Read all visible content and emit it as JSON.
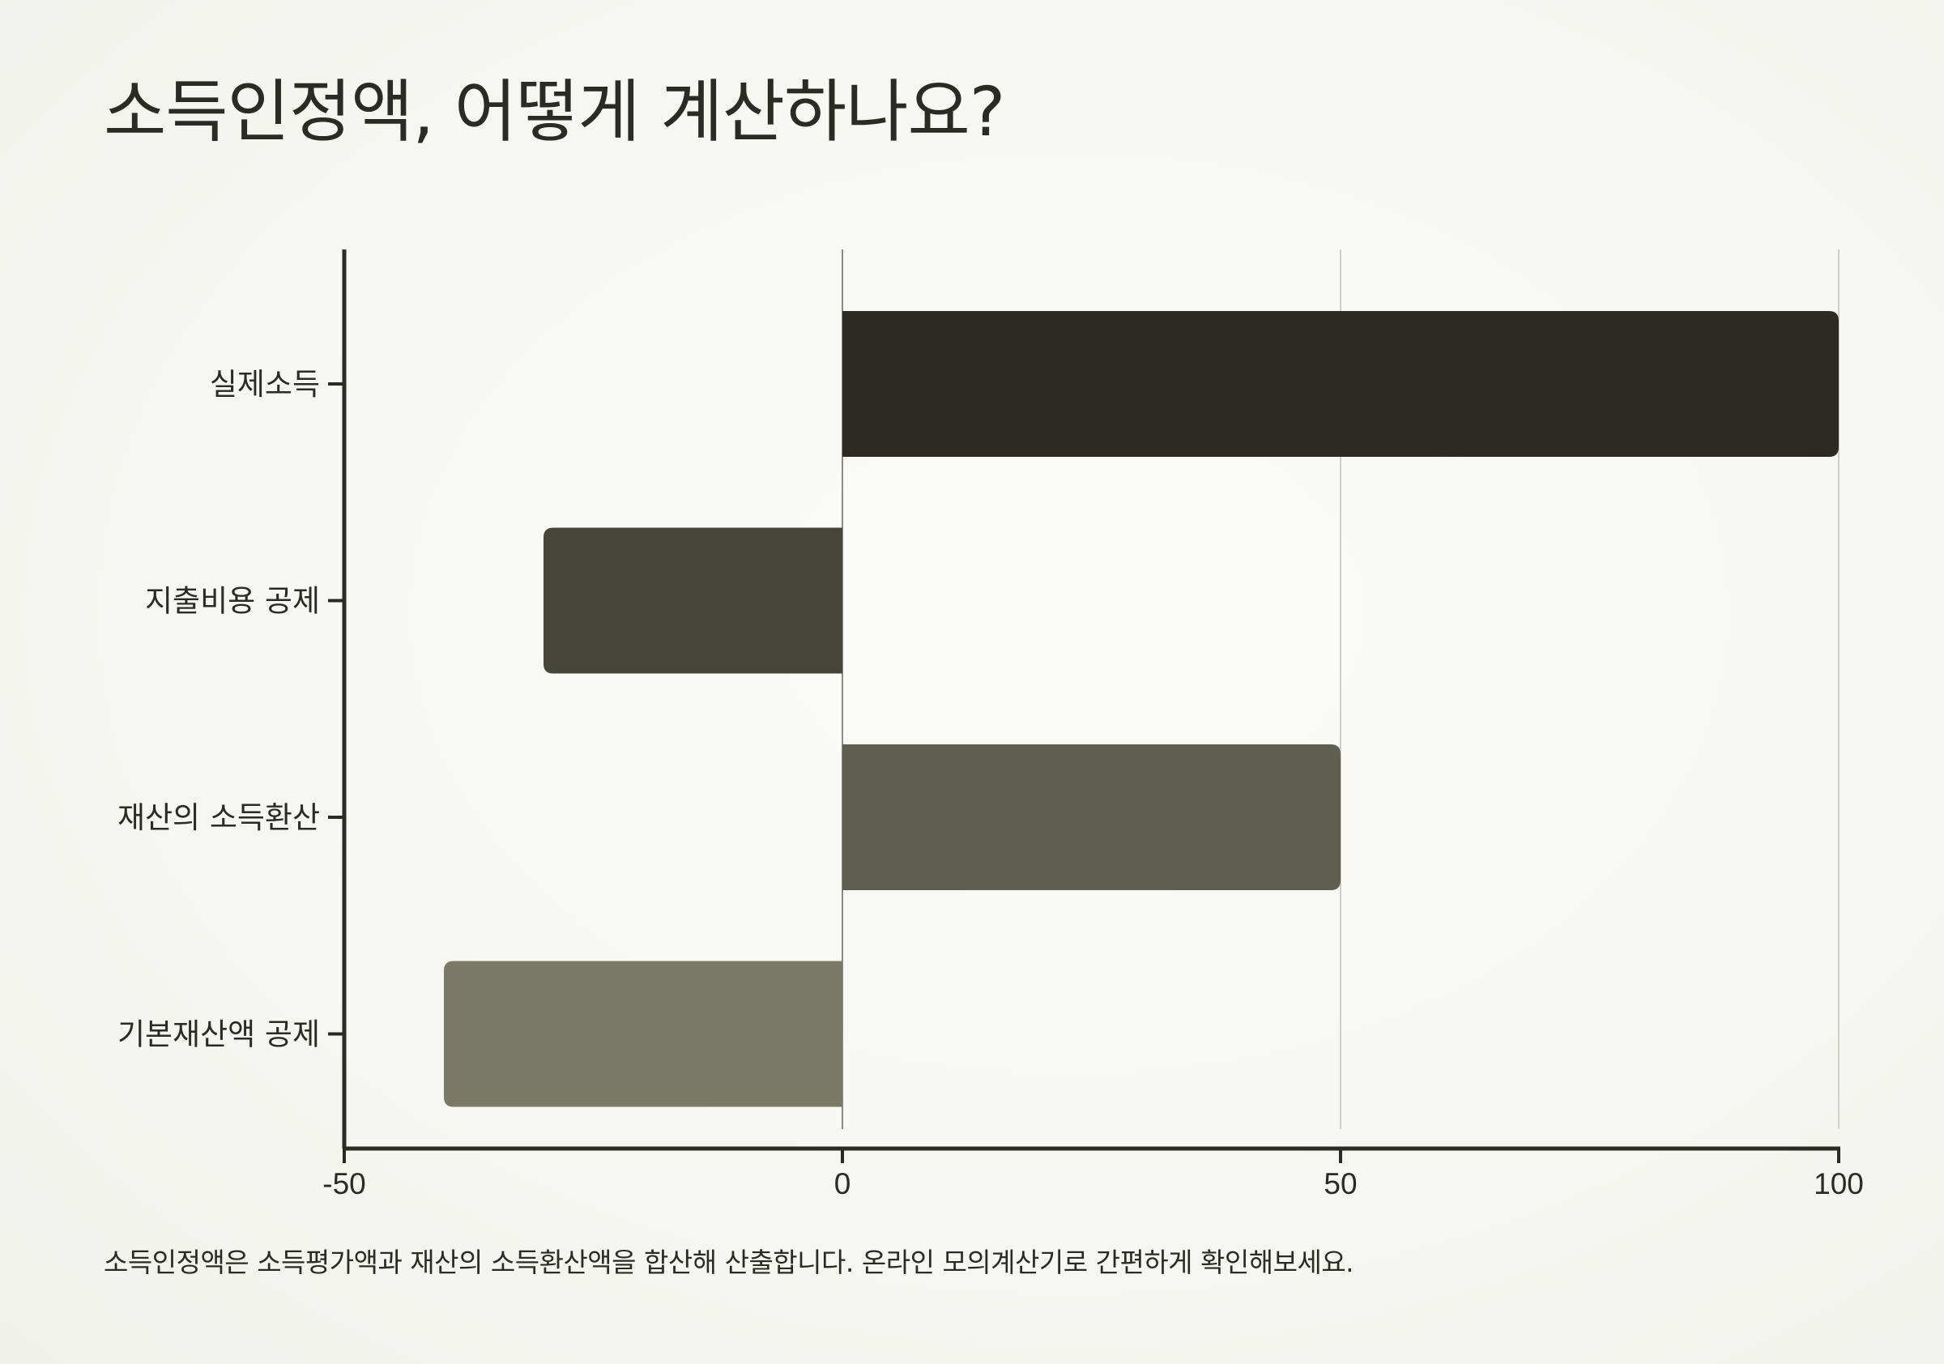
{
  "title": "소득인정액, 어떻게 계산하나요?",
  "footnote": "소득인정액은 소득평가액과 재산의 소득환산액을 합산해 산출합니다. 온라인 모의계산기로 간편하게 확인해보세요.",
  "chart_data": {
    "type": "bar",
    "orientation": "horizontal",
    "categories": [
      "실제소득",
      "지출비용 공제",
      "재산의 소득환산",
      "기본재산액 공제"
    ],
    "values": [
      100,
      -30,
      50,
      -40
    ],
    "colors": [
      "#2b2b23",
      "#45453a",
      "#5e5f4f",
      "#7a7a66"
    ],
    "xlim": [
      -50,
      100
    ],
    "xticks": [
      -50,
      0,
      50,
      100
    ],
    "xtick_labels": [
      "-50",
      "0",
      "50",
      "100"
    ],
    "grid": "vertical",
    "legend": "none"
  }
}
